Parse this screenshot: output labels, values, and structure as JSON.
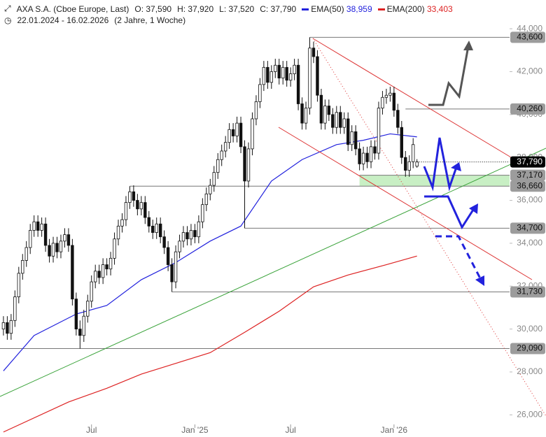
{
  "chart_data": {
    "type": "candlestick",
    "header": {
      "title": "AXA S.A. (Cboe Europe, Last)",
      "stats": [
        "O: 37,590",
        "H: 37,920",
        "L: 37,520",
        "C: 37,790"
      ],
      "period": "22.01.2024 - 16.02.2026",
      "interval": "(2 Jahre, 1 Woche)"
    },
    "xlim": [
      -0.9,
      141.7
    ],
    "xticks": [
      {
        "value": 23,
        "label": "Jul"
      },
      {
        "value": 50,
        "label": "Jan '25"
      },
      {
        "value": 75,
        "label": "Jul"
      },
      {
        "value": 102,
        "label": "Jan '26"
      }
    ],
    "ylim": [
      25.0,
      45.34
    ],
    "yticks": [
      {
        "value": 26,
        "label": "26,000"
      },
      {
        "value": 28,
        "label": "28,000"
      },
      {
        "value": 30,
        "label": "30,000"
      },
      {
        "value": 32,
        "label": "32,000"
      },
      {
        "value": 34,
        "label": "34,000"
      },
      {
        "value": 36,
        "label": "36,000"
      },
      {
        "value": 38,
        "label": "38,000"
      },
      {
        "value": 40,
        "label": "40,000"
      },
      {
        "value": 42,
        "label": "42,000"
      },
      {
        "value": 44,
        "label": "44,000"
      }
    ],
    "candle_color": "#111111",
    "open": [
      30.0,
      30.3,
      29.8,
      30.4,
      31.5,
      32.6,
      33.2,
      33.8,
      34.6,
      35.0,
      34.6,
      34.9,
      33.9,
      33.4,
      34.0,
      33.6,
      34.1,
      34.4,
      33.9,
      31.4,
      30.0,
      29.7,
      30.6,
      31.3,
      32.2,
      32.7,
      32.4,
      33.0,
      32.8,
      33.3,
      34.2,
      34.8,
      35.1,
      35.9,
      36.4,
      36.0,
      35.6,
      35.9,
      35.2,
      34.8,
      34.5,
      34.9,
      34.3,
      33.8,
      33.0,
      32.2,
      33.6,
      34.1,
      34.5,
      34.2,
      34.6,
      34.3,
      35.0,
      35.8,
      36.3,
      36.7,
      37.3,
      37.9,
      38.3,
      38.7,
      39.3,
      39.0,
      39.6,
      38.5,
      36.9,
      38.4,
      39.8,
      40.6,
      41.4,
      42.2,
      41.5,
      42.0,
      42.3,
      41.7,
      42.2,
      41.6,
      41.9,
      42.3,
      40.5,
      39.6,
      40.3,
      43.1,
      42.7,
      40.9,
      39.6,
      40.4,
      40.0,
      39.4,
      40.1,
      39.4,
      39.8,
      38.6,
      39.2,
      38.4,
      37.7,
      38.2,
      37.8,
      38.5,
      38.2,
      40.3,
      40.8,
      40.9,
      41.0,
      40.2,
      39.4,
      38.0,
      37.4,
      37.8,
      37.59
    ],
    "high": [
      30.6,
      30.6,
      30.7,
      31.8,
      32.9,
      33.5,
      34.1,
      34.9,
      35.3,
      35.3,
      35.2,
      35.2,
      34.2,
      34.3,
      34.3,
      34.4,
      34.7,
      34.7,
      34.2,
      31.7,
      30.4,
      30.9,
      31.6,
      32.5,
      33.0,
      33.0,
      33.3,
      33.3,
      33.6,
      34.5,
      35.1,
      35.4,
      36.2,
      36.66,
      36.7,
      36.3,
      36.2,
      36.2,
      35.5,
      35.1,
      35.2,
      35.2,
      34.6,
      34.1,
      33.3,
      33.9,
      34.4,
      34.8,
      34.8,
      34.9,
      34.9,
      35.3,
      36.1,
      36.6,
      37.0,
      37.6,
      38.2,
      38.6,
      39.0,
      39.6,
      39.6,
      39.9,
      39.9,
      38.8,
      38.7,
      40.1,
      40.9,
      41.7,
      42.5,
      42.5,
      42.3,
      42.6,
      42.6,
      42.5,
      42.5,
      42.2,
      42.6,
      42.6,
      40.8,
      40.6,
      43.6,
      43.4,
      43.0,
      41.2,
      40.7,
      40.7,
      40.3,
      40.4,
      40.4,
      40.1,
      40.1,
      39.5,
      39.5,
      38.7,
      38.5,
      38.5,
      38.8,
      38.8,
      40.6,
      41.1,
      41.2,
      41.3,
      41.3,
      40.5,
      39.7,
      38.3,
      38.1,
      38.9,
      37.92
    ],
    "low": [
      29.7,
      29.5,
      29.5,
      30.1,
      31.2,
      32.3,
      32.9,
      33.5,
      34.3,
      34.3,
      34.3,
      33.6,
      33.1,
      33.1,
      33.3,
      33.3,
      33.8,
      33.6,
      31.1,
      29.7,
      29.09,
      29.4,
      30.3,
      31.0,
      31.9,
      32.1,
      32.1,
      32.5,
      32.5,
      33.0,
      33.9,
      34.5,
      34.8,
      35.6,
      35.7,
      35.3,
      35.3,
      34.9,
      34.5,
      34.2,
      34.2,
      34.0,
      33.5,
      32.7,
      31.73,
      31.9,
      33.3,
      33.8,
      33.9,
      33.9,
      34.0,
      34.0,
      34.7,
      35.5,
      36.0,
      36.4,
      37.0,
      37.6,
      38.0,
      38.4,
      38.7,
      38.7,
      38.2,
      34.7,
      36.6,
      38.1,
      39.5,
      40.3,
      41.1,
      41.2,
      41.2,
      41.7,
      41.4,
      41.4,
      41.3,
      41.3,
      41.6,
      40.2,
      39.3,
      39.3,
      40.0,
      42.4,
      40.6,
      39.3,
      39.3,
      39.7,
      39.1,
      39.1,
      39.1,
      39.1,
      38.3,
      38.3,
      38.1,
      37.4,
      37.4,
      37.5,
      37.5,
      37.9,
      37.9,
      40.0,
      40.5,
      40.6,
      39.9,
      39.1,
      37.7,
      37.1,
      37.1,
      37.5,
      37.52
    ],
    "close": [
      30.3,
      29.8,
      30.4,
      31.5,
      32.6,
      33.2,
      33.8,
      34.6,
      35.0,
      34.6,
      34.9,
      33.9,
      33.4,
      34.0,
      33.6,
      34.1,
      34.4,
      33.9,
      31.4,
      30.0,
      29.7,
      30.6,
      31.3,
      32.2,
      32.7,
      32.4,
      33.0,
      32.8,
      33.3,
      34.2,
      34.8,
      35.1,
      35.9,
      36.4,
      36.0,
      35.6,
      35.9,
      35.2,
      34.8,
      34.5,
      34.9,
      34.3,
      33.8,
      33.0,
      32.2,
      33.6,
      34.1,
      34.5,
      34.2,
      34.6,
      34.3,
      35.0,
      35.8,
      36.3,
      36.7,
      37.3,
      37.9,
      38.3,
      38.7,
      39.3,
      39.0,
      39.6,
      38.5,
      36.9,
      38.4,
      39.8,
      40.6,
      41.4,
      42.2,
      41.5,
      42.0,
      42.3,
      41.7,
      42.2,
      41.6,
      41.9,
      42.3,
      40.5,
      39.6,
      40.3,
      43.1,
      42.7,
      40.9,
      39.6,
      40.4,
      40.0,
      39.4,
      40.1,
      39.4,
      39.8,
      38.6,
      39.2,
      38.4,
      37.7,
      38.2,
      37.8,
      38.5,
      38.2,
      40.3,
      40.8,
      40.9,
      41.0,
      40.2,
      39.4,
      38.0,
      37.4,
      37.8,
      38.6,
      37.79
    ],
    "series": [
      {
        "name": "EMA(50)",
        "color": "#2222dd",
        "last": "38,959",
        "x": [
          0,
          8,
          19,
          27,
          36,
          45,
          54,
          62,
          70,
          78,
          87,
          94,
          101,
          108
        ],
        "values": [
          28.05,
          29.7,
          30.7,
          31.1,
          32.3,
          33.1,
          34.1,
          34.8,
          36.9,
          37.9,
          38.6,
          38.8,
          39.1,
          38.959
        ]
      },
      {
        "name": "EMA(200)",
        "color": "#dd2222",
        "last": "33,403",
        "x": [
          0,
          17,
          27,
          36,
          45,
          54,
          63,
          72,
          81,
          90,
          100,
          108
        ],
        "values": [
          25.2,
          26.6,
          27.24,
          27.9,
          28.4,
          28.9,
          29.85,
          30.83,
          31.97,
          32.52,
          33.0,
          33.403
        ]
      }
    ],
    "levels": [
      {
        "value": 43.6,
        "label": "43,600",
        "start": 80
      },
      {
        "value": 40.26,
        "label": "40,260",
        "start": 105
      },
      {
        "value": 37.17,
        "label": "37,170",
        "start": 93
      },
      {
        "value": 36.66,
        "label": "36,660",
        "start": 33
      },
      {
        "value": 34.7,
        "label": "34,700",
        "start": 63
      },
      {
        "value": 31.73,
        "label": "31,730",
        "start": 44
      },
      {
        "value": 29.09,
        "label": "29,090",
        "start": -0.9
      }
    ],
    "zone": {
      "top": 37.17,
      "bottom": 36.66,
      "start": 93,
      "color": "#c8efc4"
    },
    "last_price": {
      "value": 37.79,
      "label": "37,790"
    }
  }
}
